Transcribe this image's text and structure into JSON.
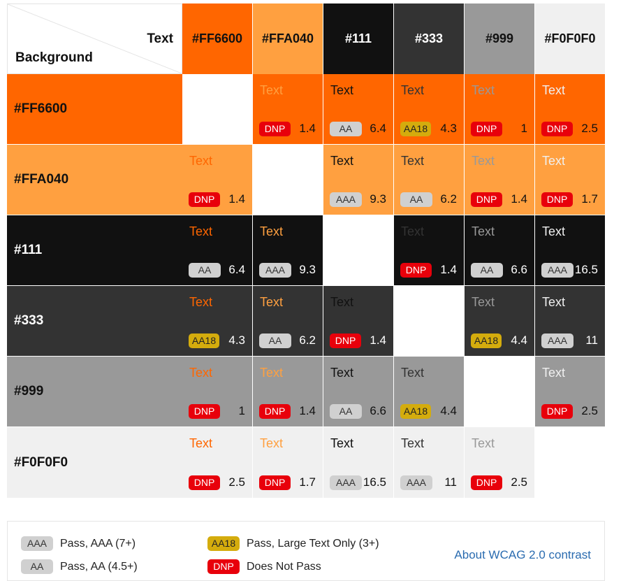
{
  "corner": {
    "text_label": "Text",
    "background_label": "Background"
  },
  "colors": [
    {
      "label": "#FF6600",
      "hex": "#FF6600",
      "on": "#111111"
    },
    {
      "label": "#FFA040",
      "hex": "#FFA040",
      "on": "#111111"
    },
    {
      "label": "#111",
      "hex": "#111111",
      "on": "#ffffff"
    },
    {
      "label": "#333",
      "hex": "#333333",
      "on": "#ffffff"
    },
    {
      "label": "#999",
      "hex": "#999999",
      "on": "#111111"
    },
    {
      "label": "#F0F0F0",
      "hex": "#F0F0F0",
      "on": "#111111"
    }
  ],
  "sample_text": "Text",
  "badge_styles": {
    "AAA": {
      "bg": "#d0d0d0",
      "fg": "#333333"
    },
    "AA": {
      "bg": "#d0d0d0",
      "fg": "#333333"
    },
    "AA18": {
      "bg": "#d4ac0d",
      "fg": "#222222"
    },
    "DNP": {
      "bg": "#e8000b",
      "fg": "#ffffff"
    }
  },
  "matrix": [
    [
      null,
      {
        "b": "DNP",
        "r": "1.4"
      },
      {
        "b": "AA",
        "r": "6.4"
      },
      {
        "b": "AA18",
        "r": "4.3"
      },
      {
        "b": "DNP",
        "r": "1"
      },
      {
        "b": "DNP",
        "r": "2.5"
      }
    ],
    [
      {
        "b": "DNP",
        "r": "1.4"
      },
      null,
      {
        "b": "AAA",
        "r": "9.3"
      },
      {
        "b": "AA",
        "r": "6.2"
      },
      {
        "b": "DNP",
        "r": "1.4"
      },
      {
        "b": "DNP",
        "r": "1.7"
      }
    ],
    [
      {
        "b": "AA",
        "r": "6.4"
      },
      {
        "b": "AAA",
        "r": "9.3"
      },
      null,
      {
        "b": "DNP",
        "r": "1.4"
      },
      {
        "b": "AA",
        "r": "6.6"
      },
      {
        "b": "AAA",
        "r": "16.5"
      }
    ],
    [
      {
        "b": "AA18",
        "r": "4.3"
      },
      {
        "b": "AA",
        "r": "6.2"
      },
      {
        "b": "DNP",
        "r": "1.4"
      },
      null,
      {
        "b": "AA18",
        "r": "4.4"
      },
      {
        "b": "AAA",
        "r": "11"
      }
    ],
    [
      {
        "b": "DNP",
        "r": "1"
      },
      {
        "b": "DNP",
        "r": "1.4"
      },
      {
        "b": "AA",
        "r": "6.6"
      },
      {
        "b": "AA18",
        "r": "4.4"
      },
      null,
      {
        "b": "DNP",
        "r": "2.5"
      }
    ],
    [
      {
        "b": "DNP",
        "r": "2.5"
      },
      {
        "b": "DNP",
        "r": "1.7"
      },
      {
        "b": "AAA",
        "r": "16.5"
      },
      {
        "b": "AAA",
        "r": "11"
      },
      {
        "b": "DNP",
        "r": "2.5"
      },
      null
    ]
  ],
  "legend": {
    "items": [
      {
        "badge": "AAA",
        "text": "Pass, AAA (7+)"
      },
      {
        "badge": "AA",
        "text": "Pass, AA (4.5+)"
      },
      {
        "badge": "AA18",
        "text": "Pass, Large Text Only (3+)"
      },
      {
        "badge": "DNP",
        "text": "Does Not Pass"
      }
    ],
    "about_link": "About WCAG 2.0 contrast"
  }
}
